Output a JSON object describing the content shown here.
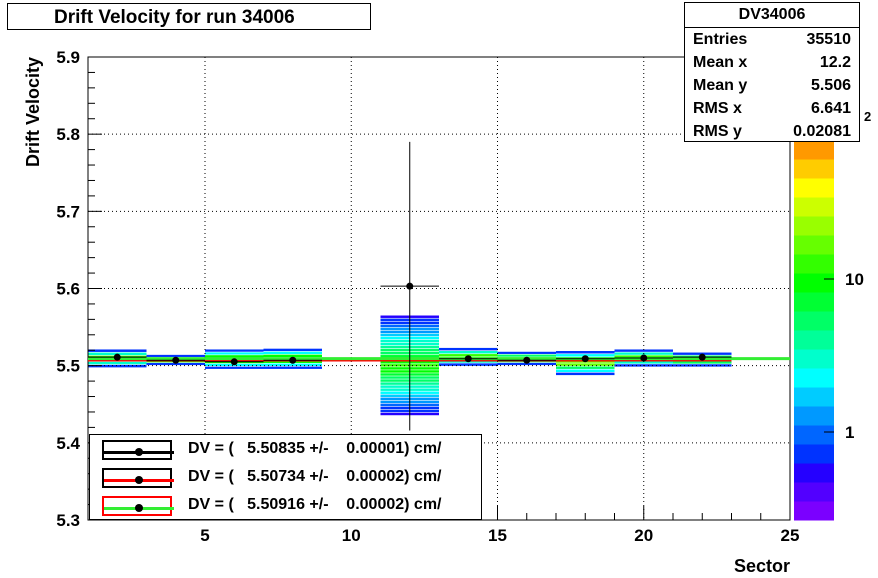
{
  "title": "Drift Velocity for run 34006",
  "stats": {
    "name": "DV34006",
    "rows": [
      {
        "label": "Entries",
        "value": "35510"
      },
      {
        "label": "Mean x",
        "value": "12.2"
      },
      {
        "label": "Mean y",
        "value": "5.506"
      },
      {
        "label": "RMS x",
        "value": "6.641"
      },
      {
        "label": "RMS y",
        "value": "0.02081"
      }
    ]
  },
  "legend": [
    {
      "text": "DV = (   5.50835 +/-    0.00001) cm/",
      "line_color": "#000000",
      "frame_color": "#000000"
    },
    {
      "text": "DV = (   5.50734 +/-    0.00002) cm/",
      "line_color": "#ff0000",
      "frame_color": "#000000"
    },
    {
      "text": "DV = (   5.50916 +/-    0.00002) cm/",
      "line_color": "#33ee33",
      "frame_color": "#ff0000"
    }
  ],
  "colors": {
    "fit_black": "#000000",
    "fit_red": "#ff0000",
    "fit_green": "#33ee33",
    "palette": [
      "#7b00ff",
      "#5200ff",
      "#2500ff",
      "#0033ff",
      "#0066ff",
      "#0099ff",
      "#00ccff",
      "#00ffff",
      "#00ffcc",
      "#00ff99",
      "#00ff66",
      "#00ff33",
      "#00ff00",
      "#33ff00",
      "#66ff00",
      "#99ff00",
      "#ccff00",
      "#ffff00",
      "#ffcc00",
      "#ff9900"
    ]
  },
  "chart_data": {
    "type": "scatter",
    "xlabel": "Sector",
    "ylabel": "Drift Velocity",
    "xlim": [
      1,
      25
    ],
    "ylim": [
      5.3,
      5.9
    ],
    "xticks": [
      5,
      10,
      15,
      20,
      25
    ],
    "yticks": [
      5.3,
      5.4,
      5.5,
      5.6,
      5.7,
      5.8,
      5.9
    ],
    "grid": true,
    "z_axis_ticks": [
      "1",
      "10"
    ],
    "z_axis_partial_label": "2",
    "profile_points": [
      {
        "x": 2,
        "y": 5.511,
        "err": 0.002
      },
      {
        "x": 4,
        "y": 5.507,
        "err": 0.002
      },
      {
        "x": 6,
        "y": 5.505,
        "err": 0.002
      },
      {
        "x": 8,
        "y": 5.507,
        "err": 0.002
      },
      {
        "x": 12,
        "y": 5.603,
        "err": 0.187
      },
      {
        "x": 14,
        "y": 5.509,
        "err": 0.002
      },
      {
        "x": 16,
        "y": 5.507,
        "err": 0.002
      },
      {
        "x": 18,
        "y": 5.509,
        "err": 0.002
      },
      {
        "x": 20,
        "y": 5.51,
        "err": 0.002
      },
      {
        "x": 22,
        "y": 5.511,
        "err": 0.002
      }
    ],
    "bins": [
      {
        "x0": 1,
        "x1": 3,
        "y0": 5.497,
        "y1": 5.521
      },
      {
        "x0": 3,
        "x1": 5,
        "y0": 5.5,
        "y1": 5.514
      },
      {
        "x0": 5,
        "x1": 7,
        "y0": 5.495,
        "y1": 5.521
      },
      {
        "x0": 7,
        "x1": 9,
        "y0": 5.495,
        "y1": 5.522
      },
      {
        "x0": 11,
        "x1": 13,
        "y0": 5.435,
        "y1": 5.565
      },
      {
        "x0": 13,
        "x1": 15,
        "y0": 5.499,
        "y1": 5.523
      },
      {
        "x0": 15,
        "x1": 17,
        "y0": 5.5,
        "y1": 5.518
      },
      {
        "x0": 17,
        "x1": 19,
        "y0": 5.487,
        "y1": 5.519
      },
      {
        "x0": 19,
        "x1": 21,
        "y0": 5.498,
        "y1": 5.521
      },
      {
        "x0": 21,
        "x1": 23,
        "y0": 5.498,
        "y1": 5.517
      }
    ],
    "fits": [
      {
        "color": "#000000",
        "x0": 1,
        "x1": 13.7,
        "y": 5.50835
      },
      {
        "color": "#ff0000",
        "x0": 1,
        "x1": 23,
        "y": 5.50734
      },
      {
        "color": "#33ee33",
        "x0": 1,
        "x1": 25,
        "y": 5.50916
      }
    ]
  }
}
